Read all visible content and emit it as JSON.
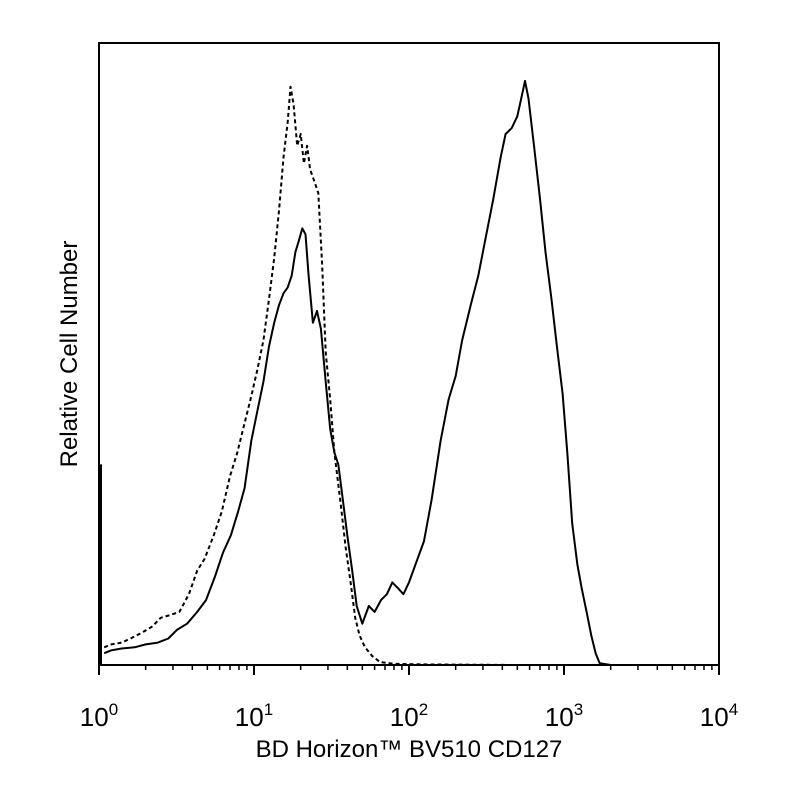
{
  "chart_data": {
    "type": "line",
    "title": "",
    "xlabel": "BD Horizon™ BV510 CD127",
    "ylabel": "Relative Cell Number",
    "x_scale": "log10",
    "xlim": [
      1,
      10000
    ],
    "ylim": [
      0,
      100
    ],
    "x_ticks": [
      {
        "base": "10",
        "exp": "0",
        "value": 1
      },
      {
        "base": "10",
        "exp": "1",
        "value": 10
      },
      {
        "base": "10",
        "exp": "2",
        "value": 100
      },
      {
        "base": "10",
        "exp": "3",
        "value": 1000
      },
      {
        "base": "10",
        "exp": "4",
        "value": 10000
      }
    ],
    "grid": false,
    "legend": "none",
    "series": [
      {
        "style": "dashed",
        "color": "#000000",
        "points": [
          [
            1.08,
            3
          ],
          [
            1.2,
            3.5
          ],
          [
            1.4,
            3.8
          ],
          [
            1.6,
            4.5
          ],
          [
            1.9,
            5.5
          ],
          [
            2.2,
            6.5
          ],
          [
            2.5,
            8
          ],
          [
            2.9,
            8.5
          ],
          [
            3.3,
            9
          ],
          [
            3.8,
            12
          ],
          [
            4.3,
            16
          ],
          [
            4.8,
            18
          ],
          [
            5.5,
            22
          ],
          [
            6.2,
            26
          ],
          [
            7.0,
            32
          ],
          [
            7.8,
            36
          ],
          [
            8.5,
            40
          ],
          [
            9.5,
            45
          ],
          [
            10.5,
            50
          ],
          [
            11.5,
            55
          ],
          [
            12.5,
            62
          ],
          [
            13.5,
            69
          ],
          [
            14.5,
            77
          ],
          [
            15.5,
            86
          ],
          [
            16.5,
            92
          ],
          [
            17.2,
            98
          ],
          [
            18.0,
            95
          ],
          [
            19.0,
            88
          ],
          [
            20.0,
            90
          ],
          [
            21.0,
            85
          ],
          [
            22.0,
            88
          ],
          [
            23.0,
            84
          ],
          [
            24.5,
            82
          ],
          [
            26.0,
            80
          ],
          [
            27.5,
            68
          ],
          [
            29.0,
            53
          ],
          [
            31.0,
            45
          ],
          [
            33.0,
            36
          ],
          [
            36.0,
            28
          ],
          [
            39.0,
            20
          ],
          [
            42.0,
            14
          ],
          [
            45.0,
            8
          ],
          [
            48.0,
            5
          ],
          [
            52.0,
            3
          ],
          [
            58.0,
            1.5
          ],
          [
            65.0,
            0.5
          ],
          [
            80.0,
            0.2
          ],
          [
            120,
            0.1
          ],
          [
            500,
            0
          ],
          [
            2000,
            0
          ],
          [
            10000,
            0
          ]
        ]
      },
      {
        "style": "solid",
        "color": "#000000",
        "points": [
          [
            1.08,
            2
          ],
          [
            1.2,
            2.5
          ],
          [
            1.4,
            2.8
          ],
          [
            1.7,
            3
          ],
          [
            2.0,
            3.5
          ],
          [
            2.4,
            3.8
          ],
          [
            2.8,
            4.5
          ],
          [
            3.2,
            6
          ],
          [
            3.7,
            7
          ],
          [
            4.3,
            9
          ],
          [
            4.9,
            11
          ],
          [
            5.6,
            15
          ],
          [
            6.3,
            19
          ],
          [
            7.1,
            22
          ],
          [
            7.9,
            26
          ],
          [
            8.7,
            30
          ],
          [
            9.6,
            38
          ],
          [
            10.5,
            43
          ],
          [
            11.5,
            48
          ],
          [
            12.5,
            54
          ],
          [
            13.5,
            58
          ],
          [
            14.5,
            61
          ],
          [
            15.5,
            63
          ],
          [
            16.5,
            64
          ],
          [
            17.5,
            66
          ],
          [
            18.5,
            70
          ],
          [
            19.5,
            72
          ],
          [
            20.5,
            74
          ],
          [
            21.5,
            73
          ],
          [
            22.5,
            66
          ],
          [
            24.0,
            58
          ],
          [
            25.5,
            60
          ],
          [
            27.0,
            57
          ],
          [
            29.0,
            48
          ],
          [
            31.0,
            40
          ],
          [
            33.0,
            36
          ],
          [
            35.0,
            34
          ],
          [
            37.0,
            29
          ],
          [
            40.0,
            22
          ],
          [
            43.0,
            16
          ],
          [
            46.0,
            10
          ],
          [
            50.0,
            7
          ],
          [
            55.0,
            10
          ],
          [
            60.0,
            9
          ],
          [
            66.0,
            11
          ],
          [
            72.0,
            12
          ],
          [
            78.0,
            14
          ],
          [
            85.0,
            13
          ],
          [
            92.0,
            12
          ],
          [
            100.0,
            14
          ],
          [
            110.0,
            17
          ],
          [
            125.0,
            21
          ],
          [
            140.0,
            28
          ],
          [
            160.0,
            38
          ],
          [
            180.0,
            45
          ],
          [
            200.0,
            49
          ],
          [
            220.0,
            55
          ],
          [
            250.0,
            61
          ],
          [
            280.0,
            66
          ],
          [
            310.0,
            72
          ],
          [
            350.0,
            79
          ],
          [
            390.0,
            86
          ],
          [
            420.0,
            90
          ],
          [
            460.0,
            91
          ],
          [
            500.0,
            93
          ],
          [
            540.0,
            97
          ],
          [
            560.0,
            99
          ],
          [
            590.0,
            96
          ],
          [
            640.0,
            88
          ],
          [
            700.0,
            79
          ],
          [
            760.0,
            70
          ],
          [
            830.0,
            62
          ],
          [
            900.0,
            54
          ],
          [
            980.0,
            46
          ],
          [
            1050.0,
            36
          ],
          [
            1130.0,
            24
          ],
          [
            1220.0,
            17
          ],
          [
            1300.0,
            13
          ],
          [
            1400.0,
            9
          ],
          [
            1500.0,
            5
          ],
          [
            1600.0,
            2
          ],
          [
            1700.0,
            0.3
          ],
          [
            2000.0,
            0
          ],
          [
            10000,
            0
          ]
        ]
      }
    ]
  }
}
